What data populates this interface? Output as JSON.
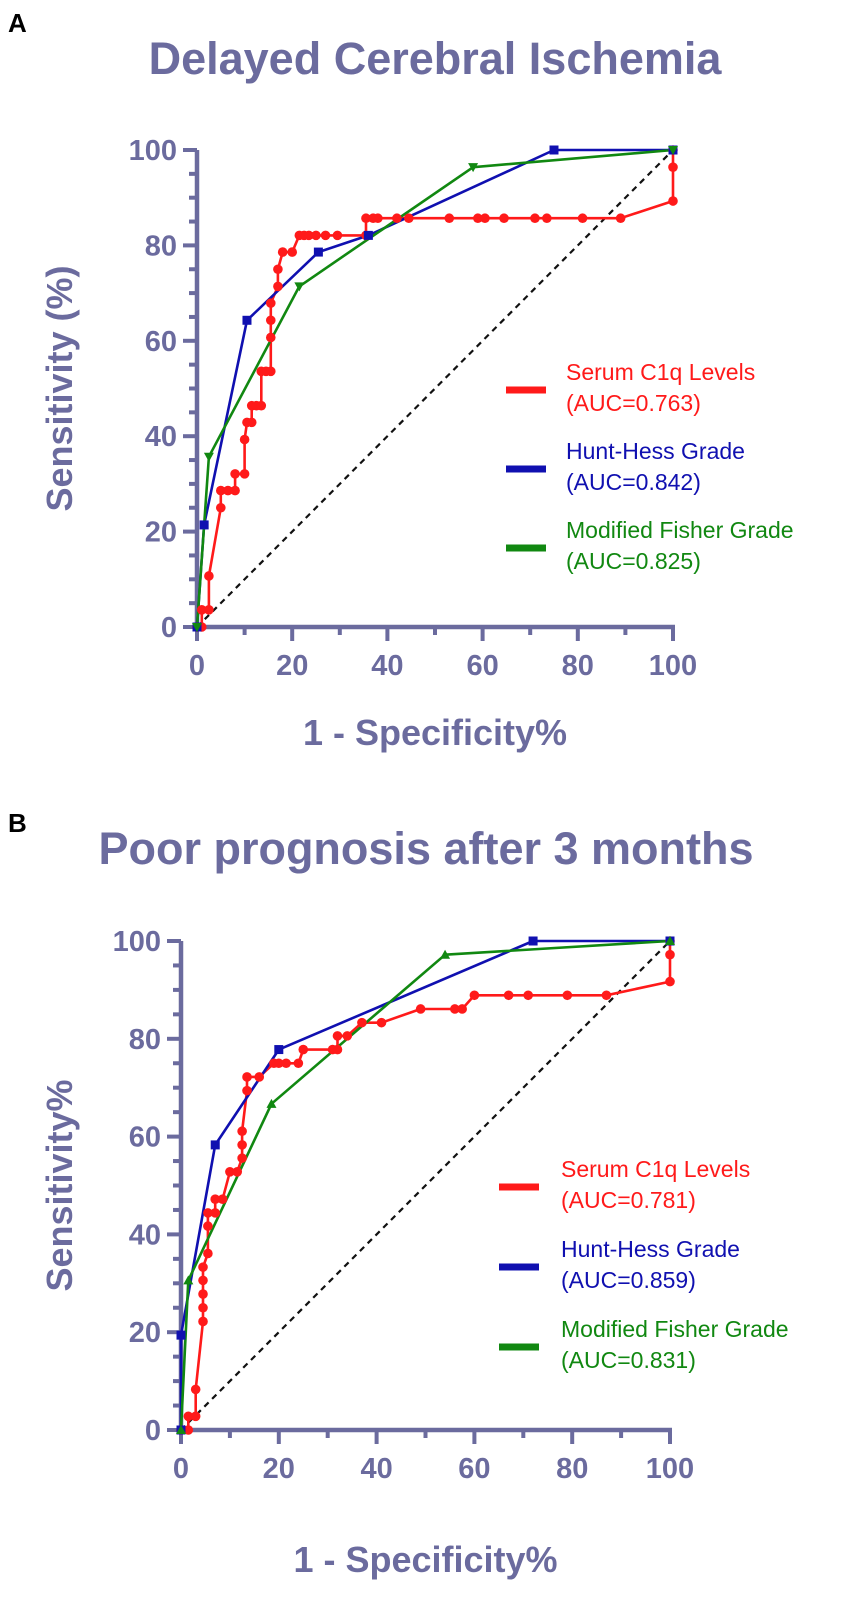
{
  "chart_data": [
    {
      "panel": "A",
      "type": "line",
      "title": "Delayed Cerebral Ischemia",
      "xlabel": "1 - Specificity%",
      "ylabel": "Sensitivity (%)",
      "xlim": [
        0,
        100
      ],
      "ylim": [
        0,
        100
      ],
      "xticks": [
        0,
        20,
        40,
        60,
        80,
        100
      ],
      "yticks": [
        0,
        20,
        40,
        60,
        80,
        100
      ],
      "reference_line": "diagonal (0,0)-(100,100), dashed",
      "series": [
        {
          "name": "Serum C1q Levels",
          "auc_label": "(AUC=0.763)",
          "color": "#ff1a1a",
          "marker": "circle",
          "points": [
            [
              0,
              0
            ],
            [
              1,
              0
            ],
            [
              1,
              3.6
            ],
            [
              2.5,
              3.6
            ],
            [
              2.5,
              10.7
            ],
            [
              5,
              25
            ],
            [
              5,
              28.6
            ],
            [
              6.5,
              28.6
            ],
            [
              8,
              28.6
            ],
            [
              8,
              32.1
            ],
            [
              10,
              32.1
            ],
            [
              10,
              39.3
            ],
            [
              10.5,
              42.9
            ],
            [
              11.5,
              42.9
            ],
            [
              11.5,
              46.4
            ],
            [
              12.5,
              46.4
            ],
            [
              13.5,
              46.4
            ],
            [
              13.5,
              53.6
            ],
            [
              14.5,
              53.6
            ],
            [
              15.5,
              53.6
            ],
            [
              15.5,
              60.7
            ],
            [
              15.5,
              64.3
            ],
            [
              15.5,
              67.9
            ],
            [
              17,
              71.4
            ],
            [
              17,
              75
            ],
            [
              18,
              78.6
            ],
            [
              20,
              78.6
            ],
            [
              21.5,
              82.1
            ],
            [
              22.5,
              82.1
            ],
            [
              23.5,
              82.1
            ],
            [
              25,
              82.1
            ],
            [
              27,
              82.1
            ],
            [
              29.5,
              82.1
            ],
            [
              35.5,
              82.1
            ],
            [
              35.5,
              85.7
            ],
            [
              37,
              85.7
            ],
            [
              38,
              85.7
            ],
            [
              42,
              85.7
            ],
            [
              44.5,
              85.7
            ],
            [
              53,
              85.7
            ],
            [
              59,
              85.7
            ],
            [
              60.5,
              85.7
            ],
            [
              64.5,
              85.7
            ],
            [
              71,
              85.7
            ],
            [
              73.5,
              85.7
            ],
            [
              81,
              85.7
            ],
            [
              89,
              85.7
            ],
            [
              100,
              89.3
            ],
            [
              100,
              96.4
            ],
            [
              100,
              100
            ]
          ]
        },
        {
          "name": "Hunt-Hess Grade",
          "auc_label": "(AUC=0.842)",
          "color": "#1010b0",
          "marker": "square",
          "points": [
            [
              0,
              0
            ],
            [
              1.5,
              21.4
            ],
            [
              10.5,
              64.3
            ],
            [
              25.5,
              78.6
            ],
            [
              36,
              82.1
            ],
            [
              75,
              100
            ],
            [
              100,
              100
            ]
          ]
        },
        {
          "name": "Modified Fisher Grade",
          "auc_label": "(AUC=0.825)",
          "color": "#118811",
          "marker": "triangle-down",
          "points": [
            [
              0,
              0
            ],
            [
              2.5,
              35.7
            ],
            [
              21.5,
              71.4
            ],
            [
              58,
              96.4
            ],
            [
              100,
              100
            ]
          ]
        }
      ]
    },
    {
      "panel": "B",
      "type": "line",
      "title": "Poor prognosis after 3 months",
      "xlabel": "1 - Specificity%",
      "ylabel": "Sensitivity%",
      "xlim": [
        0,
        100
      ],
      "ylim": [
        0,
        100
      ],
      "xticks": [
        0,
        20,
        40,
        60,
        80,
        100
      ],
      "yticks": [
        0,
        20,
        40,
        60,
        80,
        100
      ],
      "reference_line": "diagonal (0,0)-(100,100), dashed",
      "series": [
        {
          "name": "Serum C1q Levels",
          "auc_label": "(AUC=0.781)",
          "color": "#ff1a1a",
          "marker": "circle",
          "points": [
            [
              0,
              0
            ],
            [
              1.5,
              0
            ],
            [
              1.5,
              2.8
            ],
            [
              3,
              2.8
            ],
            [
              3,
              8.3
            ],
            [
              4.5,
              22.2
            ],
            [
              4.5,
              25
            ],
            [
              4.5,
              27.8
            ],
            [
              4.5,
              30.6
            ],
            [
              4.5,
              33.3
            ],
            [
              5.5,
              36.1
            ],
            [
              5.5,
              41.7
            ],
            [
              5.5,
              44.4
            ],
            [
              7,
              44.4
            ],
            [
              7,
              47.2
            ],
            [
              8.5,
              47.2
            ],
            [
              10,
              52.8
            ],
            [
              11.5,
              52.8
            ],
            [
              12.5,
              55.6
            ],
            [
              12.5,
              58.3
            ],
            [
              12.5,
              61.1
            ],
            [
              13.5,
              69.4
            ],
            [
              13.5,
              72.2
            ],
            [
              16,
              72.2
            ],
            [
              19,
              75
            ],
            [
              20,
              75
            ],
            [
              21.5,
              75
            ],
            [
              24,
              75
            ],
            [
              25,
              77.8
            ],
            [
              31,
              77.8
            ],
            [
              32,
              77.8
            ],
            [
              32,
              80.6
            ],
            [
              34,
              80.6
            ],
            [
              37,
              83.3
            ],
            [
              41,
              83.3
            ],
            [
              49,
              86.1
            ],
            [
              56,
              86.1
            ],
            [
              57.5,
              86.1
            ],
            [
              60,
              88.9
            ],
            [
              67,
              88.9
            ],
            [
              71,
              88.9
            ],
            [
              79,
              88.9
            ],
            [
              87,
              88.9
            ],
            [
              100,
              91.7
            ],
            [
              100,
              97.2
            ],
            [
              100,
              100
            ]
          ]
        },
        {
          "name": "Hunt-Hess Grade",
          "auc_label": "(AUC=0.859)",
          "color": "#1010b0",
          "marker": "square",
          "points": [
            [
              0,
              0
            ],
            [
              0,
              19.4
            ],
            [
              7,
              58.3
            ],
            [
              20,
              77.8
            ],
            [
              72,
              100
            ],
            [
              100,
              100
            ]
          ]
        },
        {
          "name": "Modified Fisher Grade",
          "auc_label": "(AUC=0.831)",
          "color": "#118811",
          "marker": "triangle-up",
          "points": [
            [
              0,
              0
            ],
            [
              1.5,
              30.6
            ],
            [
              18.5,
              66.7
            ],
            [
              54,
              97.2
            ],
            [
              100,
              100
            ]
          ]
        }
      ]
    }
  ]
}
